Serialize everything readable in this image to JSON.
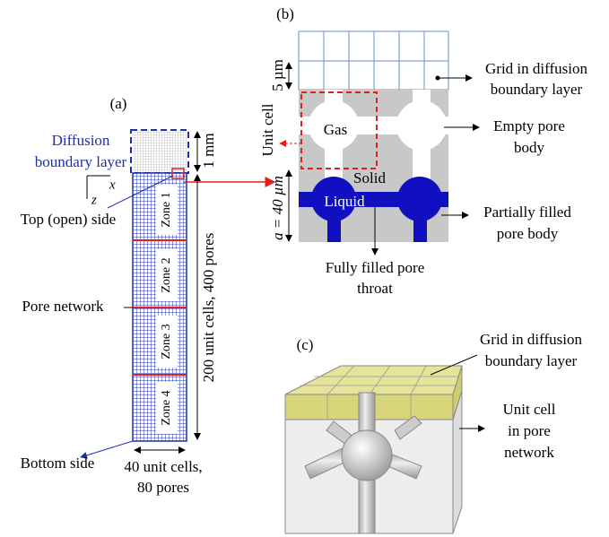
{
  "panels": {
    "a": {
      "label": "(a)",
      "diffusion_boundary_layer": [
        "Diffusion",
        "boundary layer"
      ],
      "axis_x": "x",
      "axis_z": "z",
      "height_top": "1 mm",
      "top_side": "Top (open) side",
      "zones": [
        "Zone 1",
        "Zone 2",
        "Zone 3",
        "Zone 4"
      ],
      "height_total": "200 unit cells, 400 pores",
      "pore_network": "Pore network",
      "bottom_side": "Bottom side",
      "width": [
        "40 unit cells,",
        "80 pores"
      ]
    },
    "b": {
      "label": "(b)",
      "grid_label": [
        "Grid in diffusion",
        "boundary layer"
      ],
      "grid_height": "5 µm",
      "unit_cell": "Unit cell",
      "gas": "Gas",
      "empty_pore": [
        "Empty pore",
        "body"
      ],
      "solid": "Solid",
      "liquid": "Liquid",
      "cell_size": "a = 40 µm",
      "partial_pore": [
        "Partially filled",
        "pore body"
      ],
      "filled_throat": [
        "Fully filled pore",
        "throat"
      ]
    },
    "c": {
      "label": "(c)",
      "grid_label": [
        "Grid in diffusion",
        "boundary layer"
      ],
      "unit_cell": [
        "Unit cell",
        "in pore",
        "network"
      ]
    }
  }
}
